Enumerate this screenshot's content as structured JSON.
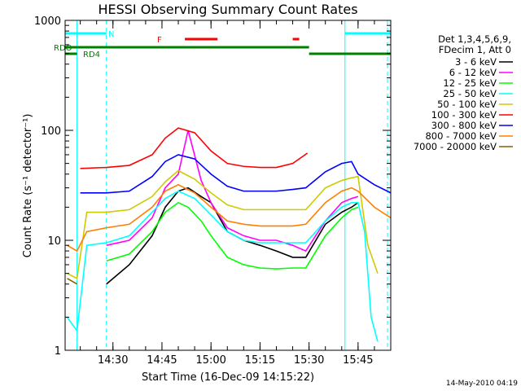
{
  "chart_data": {
    "type": "line",
    "title": "HESSI Observing Summary Count Rates",
    "xlabel": "Start Time (16-Dec-09 14:15:22)",
    "ylabel": "Count Rate (s⁻¹ detector⁻¹)",
    "yscale": "log",
    "ylim": [
      1,
      1000
    ],
    "xlim": [
      "14:15:22",
      "15:55:00"
    ],
    "x_ticks": [
      "14:30",
      "14:45",
      "15:00",
      "15:15",
      "15:30",
      "15:45"
    ],
    "y_ticks": [
      "1",
      "10",
      "100",
      "1000"
    ],
    "footer_timestamp": "14-May-2010 04:19",
    "legend": {
      "header_lines": [
        "Det 1,3,4,5,6,9,",
        "FDecim 1, Att 0"
      ],
      "placement": "right"
    },
    "series": [
      {
        "name": "3 - 6 keV",
        "color": "#000000",
        "x": [
          "14:19",
          "14:28",
          "14:35",
          "14:42",
          "14:46",
          "14:50",
          "14:53",
          "14:57",
          "15:00",
          "15:05",
          "15:10",
          "15:15",
          "15:20",
          "15:25",
          "15:29",
          "15:35",
          "15:40",
          "15:43",
          "15:45",
          "15:48"
        ],
        "values": [
          0,
          4,
          6,
          11,
          20,
          28,
          30,
          25,
          22,
          12,
          10,
          9,
          8,
          7,
          7,
          14,
          18,
          20,
          22,
          0
        ]
      },
      {
        "name": "6 - 12 keV",
        "color": "#ff00ff",
        "x": [
          "14:19",
          "14:28",
          "14:35",
          "14:42",
          "14:46",
          "14:50",
          "14:53",
          "14:57",
          "15:00",
          "15:05",
          "15:10",
          "15:15",
          "15:20",
          "15:25",
          "15:29",
          "15:35",
          "15:40",
          "15:43",
          "15:45",
          "15:48"
        ],
        "values": [
          0,
          9,
          10,
          16,
          30,
          40,
          100,
          35,
          22,
          13,
          11,
          10,
          10,
          9,
          8,
          15,
          22,
          24,
          25,
          0
        ]
      },
      {
        "name": "12 - 25 keV",
        "color": "#00ff00",
        "x": [
          "14:19",
          "14:28",
          "14:35",
          "14:42",
          "14:46",
          "14:50",
          "14:53",
          "14:57",
          "15:00",
          "15:05",
          "15:10",
          "15:15",
          "15:20",
          "15:25",
          "15:29",
          "15:35",
          "15:40",
          "15:43",
          "15:45",
          "15:48"
        ],
        "values": [
          0,
          6.5,
          7.5,
          12,
          18,
          22,
          20,
          15,
          11,
          7,
          6,
          5.6,
          5.5,
          5.6,
          5.6,
          11,
          16,
          19,
          20,
          0
        ]
      },
      {
        "name": "25 - 50 keV",
        "color": "#00ffff",
        "x": [
          "14:16",
          "14:19",
          "14:22",
          "14:28",
          "14:35",
          "14:42",
          "14:46",
          "14:50",
          "14:55",
          "15:00",
          "15:05",
          "15:10",
          "15:15",
          "15:20",
          "15:25",
          "15:29",
          "15:35",
          "15:40",
          "15:43",
          "15:45",
          "15:47",
          "15:49",
          "15:51"
        ],
        "values": [
          2,
          1.5,
          9,
          9.5,
          11,
          18,
          24,
          28,
          24,
          17,
          12,
          10,
          9.5,
          9.5,
          9.5,
          9.5,
          15,
          20,
          22,
          22,
          12,
          2,
          1.2
        ]
      },
      {
        "name": "50 - 100 keV",
        "color": "#cccc00",
        "x": [
          "14:16",
          "14:19",
          "14:22",
          "14:28",
          "14:35",
          "14:42",
          "14:46",
          "14:50",
          "14:55",
          "15:00",
          "15:05",
          "15:10",
          "15:15",
          "15:20",
          "15:25",
          "15:29",
          "15:35",
          "15:40",
          "15:43",
          "15:45",
          "15:48",
          "15:51"
        ],
        "values": [
          5,
          4.5,
          18,
          18,
          19,
          25,
          34,
          43,
          36,
          27,
          21,
          19,
          19,
          19,
          19,
          19,
          30,
          35,
          37,
          38,
          9,
          5
        ]
      },
      {
        "name": "100 - 300 keV",
        "color": "#ff0000",
        "x": [
          "14:19",
          "14:20",
          "14:28",
          "14:35",
          "14:42",
          "14:46",
          "14:50",
          "14:55",
          "15:00",
          "15:05",
          "15:10",
          "15:15",
          "15:20",
          "15:25",
          "15:29.5",
          "15:30",
          "15:35",
          "15:40",
          "15:43"
        ],
        "values": [
          0,
          45,
          46,
          48,
          60,
          85,
          105,
          95,
          65,
          50,
          47,
          46,
          46,
          50,
          62,
          0,
          0,
          0,
          0
        ]
      },
      {
        "name": "300 - 800 keV",
        "color": "#0000ff",
        "x": [
          "14:19",
          "14:20",
          "14:28",
          "14:35",
          "14:42",
          "14:46",
          "14:50",
          "14:55",
          "15:00",
          "15:05",
          "15:10",
          "15:15",
          "15:20",
          "15:25",
          "15:29",
          "15:35",
          "15:40",
          "15:43",
          "15:45",
          "15:50",
          "15:55"
        ],
        "values": [
          0,
          27,
          27,
          28,
          38,
          52,
          60,
          55,
          40,
          31,
          28,
          28,
          28,
          29,
          30,
          42,
          50,
          52,
          40,
          32,
          27
        ]
      },
      {
        "name": "800 - 7000 keV",
        "color": "#ff8000",
        "x": [
          "14:16",
          "14:19",
          "14:22",
          "14:28",
          "14:35",
          "14:42",
          "14:46",
          "14:50",
          "14:55",
          "15:00",
          "15:05",
          "15:10",
          "15:15",
          "15:20",
          "15:25",
          "15:29",
          "15:35",
          "15:40",
          "15:43",
          "15:45",
          "15:50",
          "15:55"
        ],
        "values": [
          9,
          8,
          12,
          13,
          14,
          20,
          28,
          32,
          27,
          20,
          15,
          14,
          13.5,
          13.5,
          13.5,
          14,
          22,
          28,
          30,
          28,
          20,
          16
        ]
      },
      {
        "name": "7000 - 20000 keV",
        "color": "#806000",
        "x": [
          "14:16",
          "14:19",
          "14:20",
          "14:30",
          "14:45",
          "15:00",
          "15:15",
          "15:30"
        ],
        "values": [
          4.5,
          4,
          0,
          0,
          0,
          0,
          0,
          0
        ]
      }
    ],
    "annotations": {
      "rdo_label": "RDO",
      "rd4_label": "RD4",
      "n_label": "N",
      "f_label": "F",
      "n_bars": [
        [
          "14:15:22",
          "14:28"
        ],
        [
          "15:41",
          "15:55"
        ]
      ],
      "f_bars": [
        [
          "14:52",
          "15:02"
        ],
        [
          "15:25",
          "15:27"
        ]
      ],
      "rdo_bars": [
        [
          "14:15:22",
          "15:30"
        ]
      ],
      "rd4_bars": [
        [
          "14:15:22",
          "14:19"
        ],
        [
          "15:30",
          "15:55"
        ]
      ],
      "night_lines": [
        "14:19",
        "14:28",
        "15:41",
        "15:54"
      ]
    },
    "grid": false
  }
}
